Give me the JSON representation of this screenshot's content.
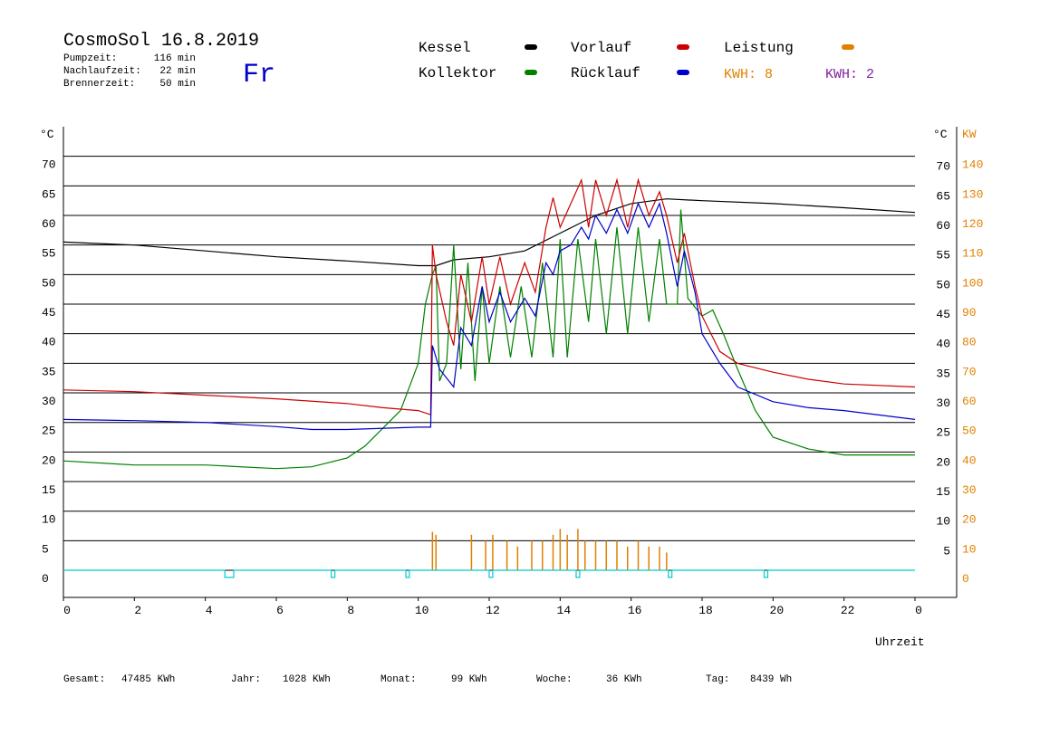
{
  "header": {
    "title": "CosmoSol 16.8.2019",
    "day": "Fr",
    "stats": [
      {
        "label": "Pumpzeit:",
        "value": "116 min"
      },
      {
        "label": "Nachlaufzeit:",
        "value": "22 min"
      },
      {
        "label": "Brennerzeit:",
        "value": "50 min"
      }
    ]
  },
  "kwh_labels": [
    {
      "text": "KWH: 8",
      "color": "#e08000"
    },
    {
      "text": "KWH: 2",
      "color": "#8020a0"
    }
  ],
  "footer": [
    {
      "label": "Gesamt:",
      "value": "47485 KWh"
    },
    {
      "label": "Jahr:",
      "value": "1028 KWh"
    },
    {
      "label": "Monat:",
      "value": "99 KWh"
    },
    {
      "label": "Woche:",
      "value": "36 KWh"
    },
    {
      "label": "Tag:",
      "value": "8439 Wh"
    }
  ],
  "chart_data": {
    "type": "line",
    "x_label": "Uhrzeit",
    "y_unit": "°C",
    "y2_unit": "KW",
    "xlim": [
      0,
      24
    ],
    "xticks": [
      0,
      2,
      4,
      6,
      8,
      10,
      12,
      14,
      16,
      18,
      20,
      22,
      {
        "value": 24,
        "label": "0"
      }
    ],
    "ylim": [
      -5,
      75
    ],
    "yticks": [
      0,
      5,
      10,
      15,
      20,
      25,
      30,
      35,
      40,
      45,
      50,
      55,
      60,
      65,
      70
    ],
    "yticks_right": [
      5,
      10,
      15,
      20,
      25,
      30,
      35,
      40,
      45,
      50,
      55,
      60,
      65,
      70
    ],
    "y2lim": [
      -10,
      150
    ],
    "y2ticks": [
      0,
      10,
      20,
      30,
      40,
      50,
      60,
      70,
      80,
      90,
      100,
      110,
      120,
      130,
      140
    ],
    "grid": true,
    "series": [
      {
        "name": "Kessel",
        "color": "#000000",
        "x": [
          0,
          2,
          4,
          6,
          8,
          10,
          10.5,
          11,
          12,
          13,
          14,
          15,
          16,
          17,
          18,
          20,
          22,
          24
        ],
        "values": [
          55.5,
          55,
          54,
          53,
          52.3,
          51.5,
          51.5,
          52.5,
          53,
          54,
          57,
          60,
          62,
          62.8,
          62.5,
          62,
          61.3,
          60.5
        ]
      },
      {
        "name": "Kollektor",
        "color": "#008000",
        "x": [
          0,
          2,
          4,
          6,
          7,
          8,
          8.5,
          9,
          9.5,
          10,
          10.2,
          10.4,
          10.5,
          10.6,
          10.8,
          11,
          11.2,
          11.4,
          11.6,
          11.8,
          12,
          12.3,
          12.6,
          12.9,
          13.2,
          13.5,
          13.8,
          14,
          14.2,
          14.5,
          14.8,
          15,
          15.3,
          15.6,
          15.9,
          16.2,
          16.5,
          16.8,
          17,
          17.3,
          17.4,
          17.6,
          18,
          18.3,
          18.6,
          19,
          19.5,
          20,
          21,
          22,
          23,
          24
        ],
        "values": [
          18.5,
          17.8,
          17.8,
          17.2,
          17.5,
          19,
          21,
          24,
          27,
          35,
          45,
          50,
          51.5,
          32,
          35,
          55,
          34,
          52,
          32,
          48,
          35,
          48,
          36,
          48,
          36,
          52,
          36,
          56,
          36,
          56,
          42,
          56,
          40,
          58,
          40,
          58,
          42,
          56,
          45,
          45,
          61,
          46,
          43,
          44,
          40,
          34,
          27,
          22.5,
          20.5,
          19.5,
          19.5,
          19.5
        ]
      },
      {
        "name": "Vorlauf",
        "color": "#cc0000",
        "x": [
          0,
          2,
          4,
          6,
          8,
          9,
          10,
          10.35,
          10.4,
          10.5,
          10.8,
          11,
          11.2,
          11.5,
          11.8,
          12,
          12.3,
          12.6,
          13,
          13.3,
          13.6,
          13.8,
          14,
          14.3,
          14.6,
          14.8,
          15,
          15.3,
          15.6,
          15.9,
          16.2,
          16.5,
          16.8,
          17,
          17.3,
          17.5,
          17.8,
          18,
          18.5,
          19,
          20,
          21,
          22,
          24
        ],
        "values": [
          30.5,
          30.2,
          29.6,
          29,
          28.2,
          27.5,
          27,
          26.3,
          55,
          50,
          42,
          38,
          50,
          42,
          53,
          45,
          53,
          45,
          52,
          47,
          58,
          63,
          58,
          62,
          66,
          58,
          66,
          60,
          66,
          58,
          66,
          60,
          64,
          60,
          52,
          57,
          48,
          43,
          37,
          35,
          33.5,
          32.3,
          31.5,
          31
        ]
      },
      {
        "name": "Rücklauf",
        "color": "#0000cc",
        "x": [
          0,
          2,
          4,
          6,
          7,
          8,
          10,
          10.35,
          10.4,
          10.6,
          11,
          11.2,
          11.5,
          11.8,
          12,
          12.3,
          12.6,
          13,
          13.3,
          13.6,
          13.8,
          14,
          14.3,
          14.6,
          14.8,
          15,
          15.3,
          15.6,
          15.9,
          16.2,
          16.5,
          16.8,
          17,
          17.3,
          17.5,
          17.8,
          18,
          18.5,
          19,
          20,
          21,
          22,
          24
        ],
        "values": [
          25.5,
          25.3,
          25,
          24.3,
          23.8,
          23.8,
          24.2,
          24.2,
          38,
          34,
          31,
          41,
          38,
          48,
          42,
          47,
          42,
          46,
          43,
          52,
          50,
          54,
          55,
          58,
          56,
          60,
          57,
          61,
          57,
          62,
          58,
          62,
          57,
          48,
          54,
          47,
          40,
          35,
          31,
          28.5,
          27.5,
          27,
          25.5
        ]
      },
      {
        "name": "Leistung",
        "color": "#e08000",
        "axis": "y2",
        "style": "spikes",
        "x": [
          10.4,
          10.5,
          11.5,
          11.9,
          12.1,
          12.5,
          12.8,
          13.2,
          13.5,
          13.8,
          14,
          14.2,
          14.5,
          14.7,
          15,
          15.3,
          15.6,
          15.9,
          16.2,
          16.5,
          16.8,
          17
        ],
        "values": [
          13,
          12,
          12,
          10,
          12,
          10,
          8,
          10,
          10,
          12,
          14,
          12,
          14,
          10,
          10,
          10,
          10,
          8,
          10,
          8,
          8,
          6
        ]
      },
      {
        "color": "#00cccc",
        "x": [
          0,
          4.55,
          4.55,
          4.8,
          4.8,
          7.55,
          7.55,
          7.65,
          7.65,
          9.65,
          9.65,
          9.75,
          9.75,
          12,
          12,
          12.1,
          12.1,
          14.45,
          14.45,
          14.55,
          14.55,
          17.05,
          17.05,
          17.15,
          17.15,
          19.75,
          19.75,
          19.85,
          19.85,
          24
        ],
        "values": [
          0,
          0,
          -1.2,
          -1.2,
          0,
          0,
          -1.2,
          -1.2,
          0,
          0,
          -1.2,
          -1.2,
          0,
          0,
          -1.2,
          -1.2,
          0,
          0,
          -1.2,
          -1.2,
          0,
          0,
          -1.2,
          -1.2,
          0,
          0,
          -1.2,
          -1.2,
          0,
          0
        ]
      }
    ]
  }
}
